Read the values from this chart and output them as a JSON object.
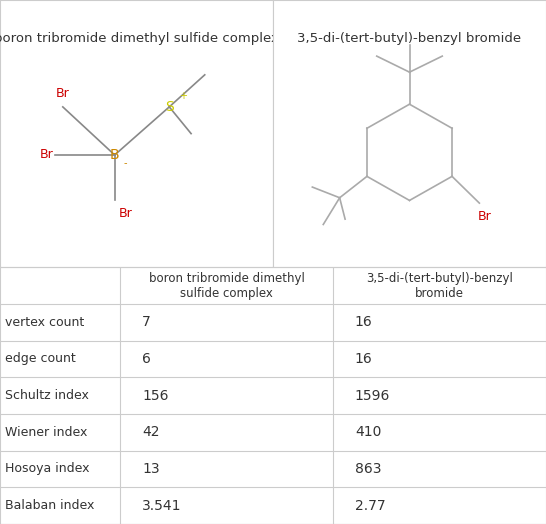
{
  "col1_header": "boron tribromide dimethyl sulfide complex",
  "col2_header": "3,5-di-(tert-butyl)-benzyl bromide",
  "row_labels": [
    "vertex count",
    "edge count",
    "Schultz index",
    "Wiener index",
    "Hosoya index",
    "Balaban index"
  ],
  "col1_values": [
    "7",
    "6",
    "156",
    "42",
    "13",
    "3.541"
  ],
  "col2_values": [
    "16",
    "16",
    "1596",
    "410",
    "863",
    "2.77"
  ],
  "bg_color": "#ffffff",
  "border_color": "#cccccc",
  "text_color": "#333333",
  "header_fontsize": 9.5,
  "cell_fontsize": 10,
  "label_fontsize": 9.5
}
